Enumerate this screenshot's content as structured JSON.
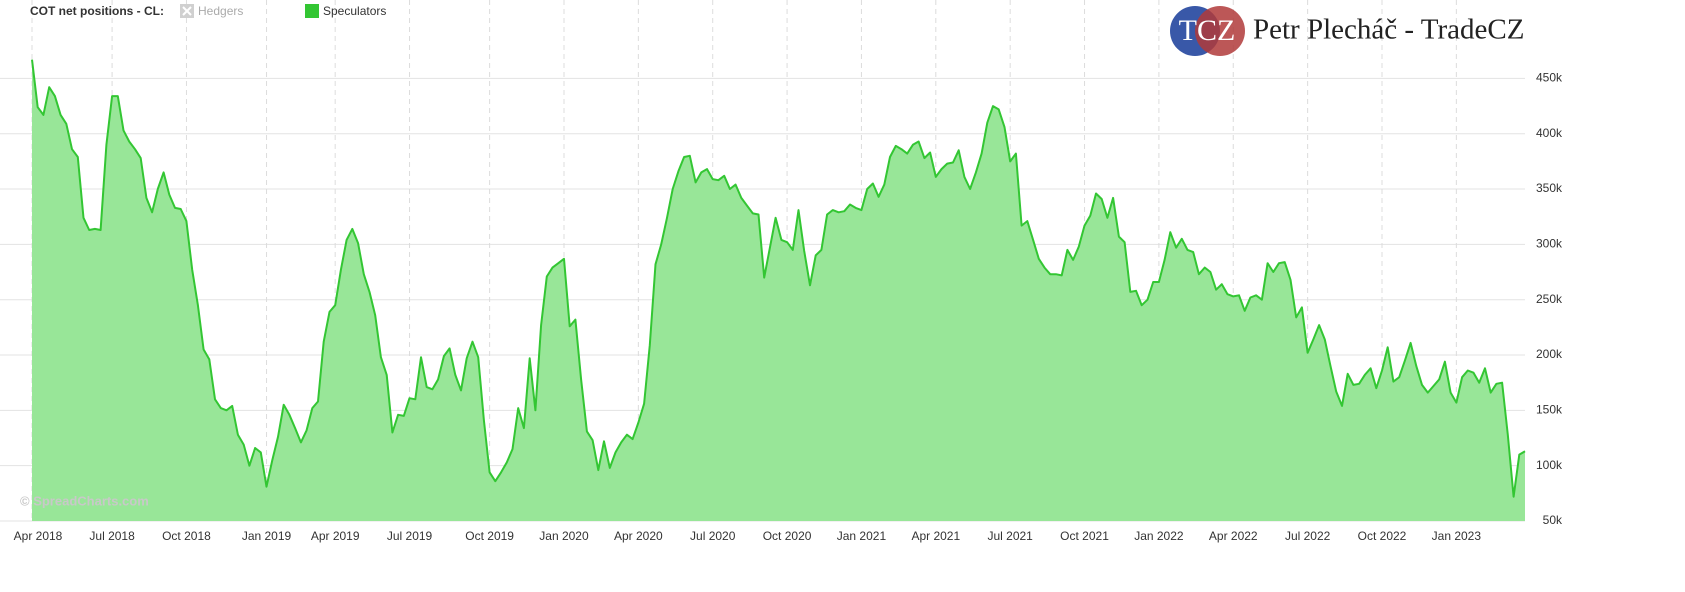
{
  "chart_data": {
    "type": "area",
    "title": "COT net positions - CL:",
    "watermark": "© SpreadCharts.com",
    "branding": {
      "logo": "TCZ",
      "name": "Petr Plecháč - TradeCZ"
    },
    "series": [
      {
        "name": "Hedgers",
        "color": "#bbbbbb",
        "visible": false
      },
      {
        "name": "Speculators",
        "color": "#33c633",
        "fill": "#98e698",
        "visible": true,
        "values": [
          467000,
          424000,
          417000,
          442000,
          434000,
          417000,
          409000,
          386000,
          379000,
          324000,
          313000,
          314000,
          313000,
          390000,
          434000,
          434000,
          403000,
          393000,
          386000,
          378000,
          342000,
          329000,
          350000,
          365000,
          345000,
          333000,
          332000,
          321000,
          277000,
          245000,
          205000,
          196000,
          160000,
          152000,
          150000,
          154000,
          128000,
          119000,
          100000,
          116000,
          112000,
          81000,
          105000,
          126000,
          155000,
          146000,
          134000,
          121000,
          132000,
          152000,
          158000,
          212000,
          239000,
          245000,
          277000,
          304000,
          314000,
          301000,
          273000,
          257000,
          236000,
          198000,
          182000,
          130000,
          146000,
          145000,
          161000,
          160000,
          198000,
          171000,
          169000,
          178000,
          199000,
          206000,
          182000,
          168000,
          197000,
          212000,
          198000,
          141000,
          94000,
          86000,
          94000,
          103000,
          115000,
          152000,
          134000,
          197000,
          150000,
          227000,
          271000,
          279000,
          283000,
          287000,
          226000,
          232000,
          178000,
          131000,
          123000,
          96000,
          122000,
          98000,
          112000,
          121000,
          128000,
          124000,
          139000,
          156000,
          209000,
          282000,
          300000,
          324000,
          350000,
          366000,
          379000,
          380000,
          356000,
          365000,
          368000,
          359000,
          358000,
          362000,
          350000,
          354000,
          342000,
          335000,
          328000,
          327000,
          270000,
          297000,
          324000,
          304000,
          302000,
          295000,
          331000,
          294000,
          263000,
          290000,
          295000,
          327000,
          331000,
          329000,
          330000,
          336000,
          333000,
          331000,
          350000,
          355000,
          343000,
          354000,
          379000,
          389000,
          386000,
          382000,
          390000,
          393000,
          378000,
          383000,
          361000,
          368000,
          373000,
          374000,
          385000,
          361000,
          350000,
          365000,
          382000,
          410000,
          425000,
          422000,
          406000,
          375000,
          382000,
          317000,
          321000,
          304000,
          287000,
          279000,
          273000,
          273000,
          272000,
          295000,
          286000,
          298000,
          317000,
          326000,
          346000,
          341000,
          324000,
          342000,
          307000,
          302000,
          257000,
          258000,
          245000,
          250000,
          266000,
          266000,
          286000,
          311000,
          297000,
          305000,
          295000,
          293000,
          273000,
          279000,
          275000,
          259000,
          264000,
          255000,
          253000,
          254000,
          240000,
          252000,
          254000,
          250000,
          283000,
          275000,
          283000,
          284000,
          268000,
          234000,
          243000,
          202000,
          214000,
          227000,
          214000,
          190000,
          167000,
          154000,
          183000,
          173000,
          174000,
          182000,
          188000,
          170000,
          186000,
          207000,
          176000,
          180000,
          195000,
          211000,
          190000,
          173000,
          166000,
          172000,
          178000,
          194000,
          166000,
          157000,
          180000,
          186000,
          184000,
          175000,
          188000,
          166000,
          174000,
          175000,
          128000,
          72000,
          110000,
          113000
        ]
      }
    ],
    "xlim": [
      0,
      261
    ],
    "xticks": [
      {
        "value": 0,
        "label": "Apr 2018"
      },
      {
        "value": 14,
        "label": "Jul 2018"
      },
      {
        "value": 27,
        "label": "Oct 2018"
      },
      {
        "value": 41,
        "label": "Jan 2019"
      },
      {
        "value": 53,
        "label": "Apr 2019"
      },
      {
        "value": 66,
        "label": "Jul 2019"
      },
      {
        "value": 80,
        "label": "Oct 2019"
      },
      {
        "value": 93,
        "label": "Jan 2020"
      },
      {
        "value": 106,
        "label": "Apr 2020"
      },
      {
        "value": 119,
        "label": "Jul 2020"
      },
      {
        "value": 132,
        "label": "Oct 2020"
      },
      {
        "value": 145,
        "label": "Jan 2021"
      },
      {
        "value": 158,
        "label": "Apr 2021"
      },
      {
        "value": 171,
        "label": "Jul 2021"
      },
      {
        "value": 184,
        "label": "Oct 2021"
      },
      {
        "value": 197,
        "label": "Jan 2022"
      },
      {
        "value": 210,
        "label": "Apr 2022"
      },
      {
        "value": 223,
        "label": "Jul 2022"
      },
      {
        "value": 236,
        "label": "Oct 2022"
      },
      {
        "value": 249,
        "label": "Jan 2023"
      }
    ],
    "ylim": [
      50000,
      510000
    ],
    "yticks": [
      {
        "value": 50000,
        "label": "50k"
      },
      {
        "value": 100000,
        "label": "100k"
      },
      {
        "value": 150000,
        "label": "150k"
      },
      {
        "value": 200000,
        "label": "200k"
      },
      {
        "value": 250000,
        "label": "250k"
      },
      {
        "value": 300000,
        "label": "300k"
      },
      {
        "value": 350000,
        "label": "350k"
      },
      {
        "value": 400000,
        "label": "400k"
      },
      {
        "value": 450000,
        "label": "450k"
      }
    ],
    "grid": true
  }
}
